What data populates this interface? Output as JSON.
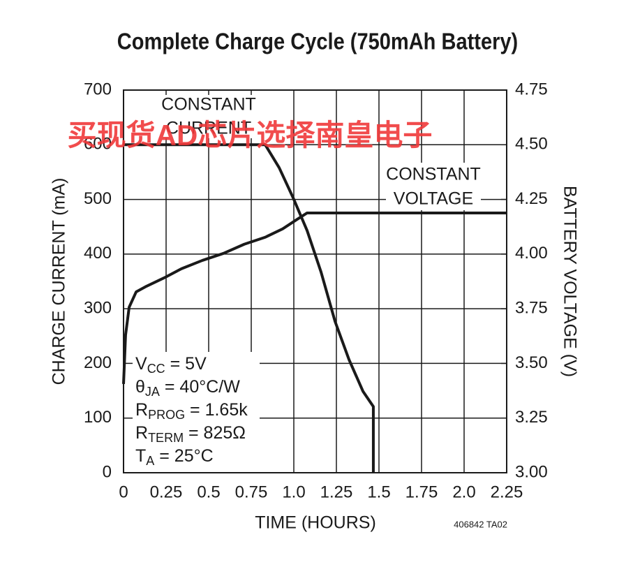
{
  "chart_data": {
    "type": "line",
    "title": "Complete Charge Cycle (750mAh Battery)",
    "x_label": "TIME (HOURS)",
    "y_label": "CHARGE CURRENT (mA)",
    "y2_label": "BATTERY VOLTAGE (V)",
    "xlim": [
      0,
      2.25
    ],
    "xticks": [
      0,
      0.25,
      0.5,
      0.75,
      {
        "value": 1,
        "label": "1.0"
      },
      1.25,
      1.5,
      1.75,
      {
        "value": 2,
        "label": "2.0"
      },
      2.25
    ],
    "ylim": [
      0,
      700
    ],
    "yticks": [
      0,
      100,
      200,
      300,
      400,
      500,
      600,
      700
    ],
    "y2lim": [
      3,
      4.75
    ],
    "y2ticks": [
      {
        "value": 3,
        "label": "3.00"
      },
      3.25,
      {
        "value": 3.5,
        "label": "3.50"
      },
      3.75,
      {
        "value": 4,
        "label": "4.00"
      },
      4.25,
      {
        "value": 4.5,
        "label": "4.50"
      },
      4.75
    ],
    "grid": true,
    "series": [
      {
        "name": "Charge Current",
        "color": "#1a1a1a",
        "x": [
          0,
          0.832,
          0.914,
          0.996,
          1.078,
          1.16,
          1.242,
          1.324,
          1.406,
          1.467,
          1.467
        ],
        "values": [
          600,
          600,
          558,
          503,
          443,
          367,
          277,
          207,
          149,
          121,
          0
        ]
      },
      {
        "name": "Battery Voltage",
        "color": "#1a1a1a",
        "axis": "y2",
        "x": [
          0,
          0.012,
          0.033,
          0.074,
          0.135,
          0.238,
          0.34,
          0.463,
          0.586,
          0.709,
          0.832,
          0.934,
          1.016,
          1.078,
          2.25
        ],
        "values": [
          3.406,
          3.63,
          3.757,
          3.827,
          3.853,
          3.891,
          3.933,
          3.971,
          4.003,
          4.045,
          4.077,
          4.115,
          4.157,
          4.188,
          4.188
        ]
      }
    ],
    "annotations": [
      "CONSTANT",
      "CURRENT",
      "CONSTANT",
      "VOLTAGE"
    ],
    "conditions": [
      {
        "main": "V",
        "sub": "CC",
        "rest": " = 5V"
      },
      {
        "main": "θ",
        "sub": "JA",
        "rest": " = 40°C/W"
      },
      {
        "main": "R",
        "sub": "PROG",
        "rest": " = 1.65k"
      },
      {
        "main": "R",
        "sub": "TERM",
        "rest": " = 825Ω"
      },
      {
        "main": "T",
        "sub": "A",
        "rest": " = 25°C"
      }
    ],
    "code": "406842 TA02",
    "watermark": "买现货AD芯片选择南皇电子"
  }
}
